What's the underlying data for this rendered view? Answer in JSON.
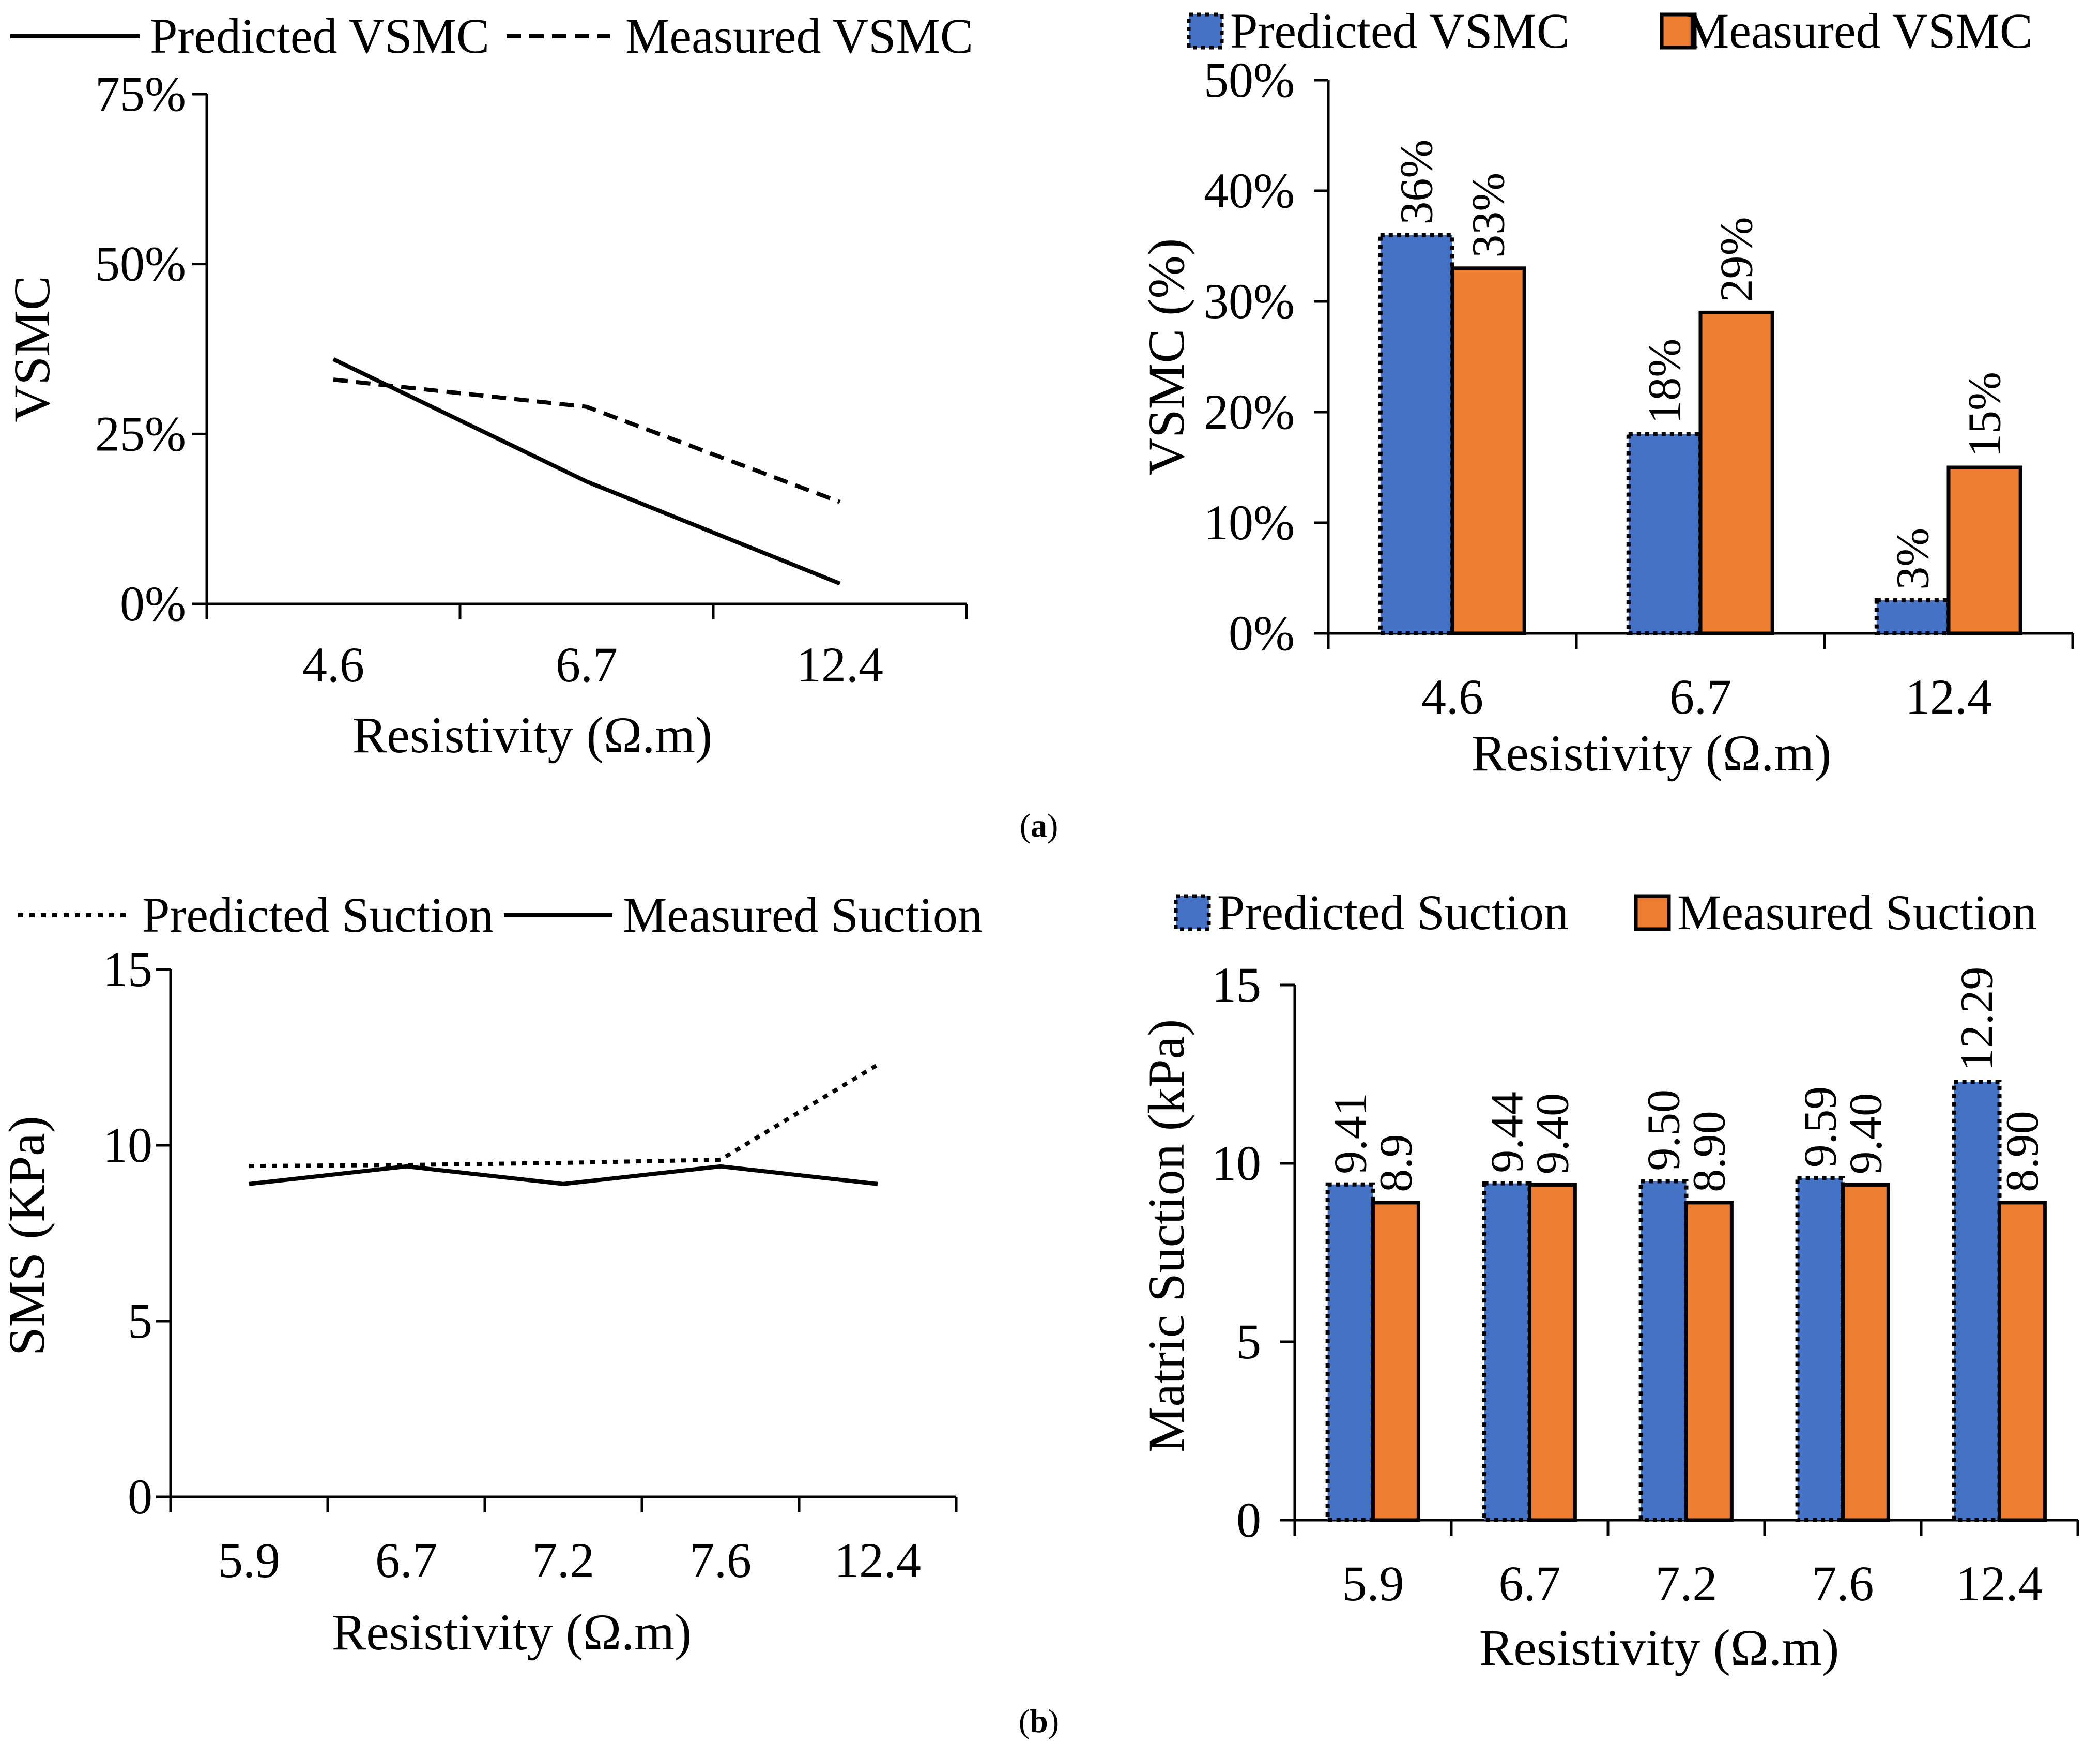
{
  "panels": {
    "a": "a",
    "b": "b"
  },
  "colors": {
    "predicted_bar": "#4472C4",
    "measured_bar": "#ED7D31",
    "line": "#000000"
  },
  "chart_data": [
    {
      "id": "a_line",
      "type": "line",
      "categories": [
        "4.6",
        "6.7",
        "12.4"
      ],
      "series": [
        {
          "name": "Predicted VSMC",
          "values": [
            0.36,
            0.18,
            0.03
          ],
          "style": "solid"
        },
        {
          "name": "Measured VSMC",
          "values": [
            0.33,
            0.29,
            0.15
          ],
          "style": "dashed"
        }
      ],
      "xlabel": "Resistivity (Ω.m)",
      "ylabel": "VSMC",
      "ylim": [
        0,
        0.75
      ],
      "yticks": [
        "0%",
        "25%",
        "50%",
        "75%"
      ]
    },
    {
      "id": "a_bar",
      "type": "bar",
      "categories": [
        "4.6",
        "6.7",
        "12.4"
      ],
      "series": [
        {
          "name": "Predicted VSMC",
          "values": [
            0.36,
            0.18,
            0.03
          ],
          "labels": [
            "36%",
            "18%",
            "3%"
          ]
        },
        {
          "name": "Measured VSMC",
          "values": [
            0.33,
            0.29,
            0.15
          ],
          "labels": [
            "33%",
            "29%",
            "15%"
          ]
        }
      ],
      "xlabel": "Resistivity (Ω.m)",
      "ylabel": "VSMC (%)",
      "ylim": [
        0,
        0.5
      ],
      "yticks": [
        "0%",
        "10%",
        "20%",
        "30%",
        "40%",
        "50%"
      ]
    },
    {
      "id": "b_line",
      "type": "line",
      "categories": [
        "5.9",
        "6.7",
        "7.2",
        "7.6",
        "12.4"
      ],
      "series": [
        {
          "name": "Predicted Suction",
          "values": [
            9.41,
            9.44,
            9.5,
            9.59,
            12.29
          ],
          "style": "dotted"
        },
        {
          "name": "Measured Suction",
          "values": [
            8.9,
            9.4,
            8.9,
            9.4,
            8.9
          ],
          "style": "solid"
        }
      ],
      "xlabel": "Resistivity (Ω.m)",
      "ylabel": "SMS (KPa)",
      "ylim": [
        0,
        15
      ],
      "yticks": [
        "0",
        "5",
        "10",
        "15"
      ]
    },
    {
      "id": "b_bar",
      "type": "bar",
      "categories": [
        "5.9",
        "6.7",
        "7.2",
        "7.6",
        "12.4"
      ],
      "series": [
        {
          "name": "Predicted Suction",
          "values": [
            9.41,
            9.44,
            9.5,
            9.59,
            12.29
          ],
          "labels": [
            "9.41",
            "9.44",
            "9.50",
            "9.59",
            "12.29"
          ]
        },
        {
          "name": "Measured Suction",
          "values": [
            8.9,
            9.4,
            8.9,
            9.4,
            8.9
          ],
          "labels": [
            "8.9",
            "9.40",
            "8.90",
            "9.40",
            "8.90"
          ]
        }
      ],
      "xlabel": "Resistivity (Ω.m)",
      "ylabel": "Matric Suction (kPa)",
      "ylim": [
        0,
        15
      ],
      "yticks": [
        "0",
        "5",
        "10",
        "15"
      ]
    }
  ]
}
